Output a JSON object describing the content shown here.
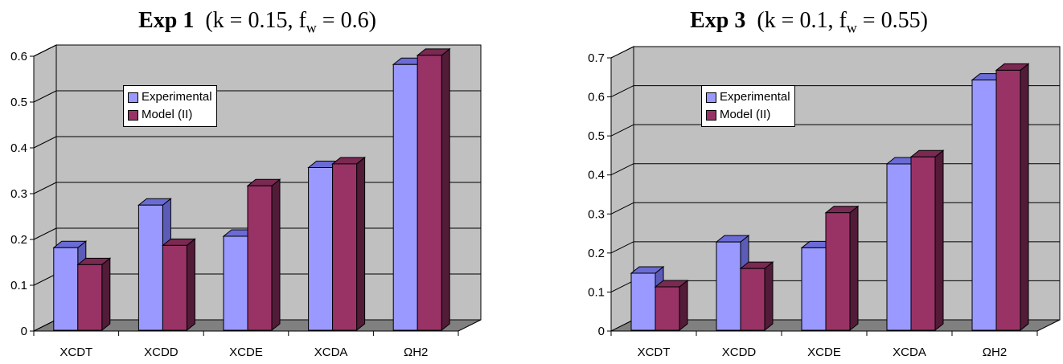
{
  "colors": {
    "experimental": "#9999ff",
    "experimental_top": "#6b6bd6",
    "experimental_side": "#5c5cb8",
    "model": "#993366",
    "model_top": "#7a2952",
    "model_side": "#521b37",
    "wall": "#c0c0c0",
    "floor": "#808080"
  },
  "chart_data": [
    {
      "type": "bar",
      "title_bold": "Exp 1",
      "title_params_a": "(k = 0.15, f",
      "title_sub": "w",
      "title_params_b": " = 0.6)",
      "categories": [
        "XCDT",
        "XCDD",
        "XCDE",
        "XCDA",
        "ΩH2"
      ],
      "series": [
        {
          "name": "Experimental",
          "values": [
            0.175,
            0.268,
            0.2,
            0.35,
            0.575
          ]
        },
        {
          "name": "Model (II)",
          "values": [
            0.138,
            0.18,
            0.31,
            0.358,
            0.595
          ]
        }
      ],
      "ylim": [
        0,
        0.6
      ],
      "yticks": [
        "0",
        "0.1",
        "0.2",
        "0.3",
        "0.4",
        "0.5",
        "0.6"
      ],
      "grid": true,
      "legend_position": "upper-left"
    },
    {
      "type": "bar",
      "title_bold": "Exp 3",
      "title_params_a": "(k = 0.1, f",
      "title_sub": "w",
      "title_params_b": " = 0.55)",
      "categories": [
        "XCDT",
        "XCDD",
        "XCDE",
        "XCDA",
        "ΩH2"
      ],
      "series": [
        {
          "name": "Experimental",
          "values": [
            0.14,
            0.22,
            0.205,
            0.42,
            0.635
          ]
        },
        {
          "name": "Model (II)",
          "values": [
            0.105,
            0.152,
            0.295,
            0.438,
            0.66
          ]
        }
      ],
      "ylim": [
        0,
        0.7
      ],
      "yticks": [
        "0",
        "0.1",
        "0.2",
        "0.3",
        "0.4",
        "0.5",
        "0.6",
        "0.7"
      ],
      "grid": true,
      "legend_position": "upper-left"
    }
  ]
}
